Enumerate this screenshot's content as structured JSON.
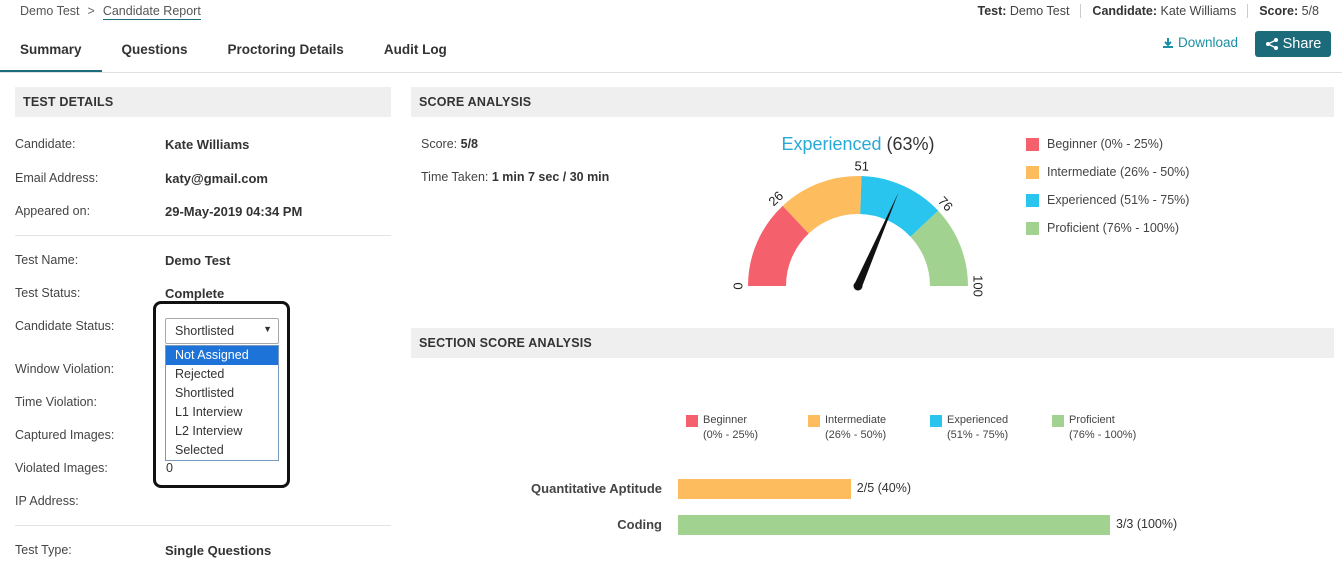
{
  "breadcrumb": {
    "root": "Demo Test",
    "separator": ">",
    "current": "Candidate Report"
  },
  "header_meta": [
    {
      "key": "Test:",
      "value": "Demo Test"
    },
    {
      "key": "Candidate:",
      "value": "Kate Williams"
    },
    {
      "key": "Score:",
      "value": "5/8"
    }
  ],
  "tabs": [
    "Summary",
    "Questions",
    "Proctoring Details",
    "Audit Log"
  ],
  "actions": {
    "download": "Download",
    "share": "Share"
  },
  "test_details": {
    "title": "TEST DETAILS",
    "candidate_label": "Candidate:",
    "candidate": "Kate Williams",
    "email_label": "Email Address:",
    "email": "katy@gmail.com",
    "appeared_label": "Appeared on:",
    "appeared": "29-May-2019 04:34 PM",
    "test_name_label": "Test Name:",
    "test_name": "Demo Test",
    "test_status_label": "Test Status:",
    "test_status": "Complete",
    "candidate_status_label": "Candidate Status:",
    "candidate_status": "Shortlisted",
    "status_options": [
      "Not Assigned",
      "Rejected",
      "Shortlisted",
      "L1 Interview",
      "L2 Interview",
      "Selected"
    ],
    "window_violation_label": "Window Violation:",
    "time_violation_label": "Time Violation:",
    "captured_images_label": "Captured Images:",
    "violated_images_label": "Violated Images:",
    "violated_images": "0",
    "ip_label": "IP Address:",
    "test_type_label": "Test Type:",
    "test_type": "Single Questions"
  },
  "score_analysis": {
    "title": "SCORE ANALYSIS",
    "score_label": "Score:",
    "score": "5/8",
    "time_label": "Time Taken:",
    "time": "1 min 7 sec / 30 min",
    "level": "Experienced",
    "percent_text": "(63%)",
    "gauge_ticks": [
      "0",
      "26",
      "51",
      "76",
      "100"
    ],
    "legend": [
      {
        "label": "Beginner (0% - 25%)",
        "color": "#f4606c"
      },
      {
        "label": "Intermediate (26% - 50%)",
        "color": "#fdbd5f"
      },
      {
        "label": "Experienced (51% - 75%)",
        "color": "#29c5ef"
      },
      {
        "label": "Proficient (76% - 100%)",
        "color": "#a2d28f"
      }
    ]
  },
  "section_score": {
    "title": "SECTION SCORE ANALYSIS",
    "legend": [
      {
        "name": "Beginner",
        "range": "(0% - 25%)",
        "color": "#f4606c"
      },
      {
        "name": "Intermediate",
        "range": "(26% - 50%)",
        "color": "#fdbd5f"
      },
      {
        "name": "Experienced",
        "range": "(51% - 75%)",
        "color": "#29c5ef"
      },
      {
        "name": "Proficient",
        "range": "(76% - 100%)",
        "color": "#a2d28f"
      }
    ]
  },
  "chart_data": [
    {
      "type": "gauge",
      "value": 63,
      "range": [
        0,
        100
      ],
      "bands": [
        {
          "from": 0,
          "to": 26,
          "color": "#f4606c"
        },
        {
          "from": 26,
          "to": 51,
          "color": "#fdbd5f"
        },
        {
          "from": 51,
          "to": 76,
          "color": "#29c5ef"
        },
        {
          "from": 76,
          "to": 100,
          "color": "#a2d28f"
        }
      ],
      "tick_labels": [
        "0",
        "26",
        "51",
        "76",
        "100"
      ]
    },
    {
      "type": "bar",
      "orientation": "horizontal",
      "categories": [
        "Quantitative Aptitude",
        "Coding"
      ],
      "values": [
        40,
        100
      ],
      "data_labels": [
        "2/5 (40%)",
        "3/3 (100%)"
      ],
      "colors": [
        "#fdbd5f",
        "#a2d28f"
      ],
      "xlim": [
        0,
        100
      ]
    }
  ]
}
